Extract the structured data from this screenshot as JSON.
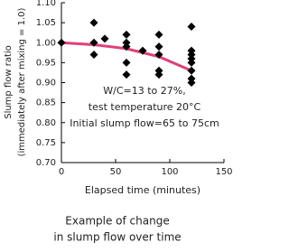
{
  "chart_data": {
    "type": "scatter",
    "x_label": "Elapsed time (minutes)",
    "y_label": [
      "Slump flow ratio",
      "(immediately after mixing = 1.0)"
    ],
    "annotation": [
      "W/C=13 to 27%,",
      "test temperature 20°C",
      "Initial slump flow=65 to 75cm"
    ],
    "caption": [
      "Example of change",
      "in slump flow over time"
    ],
    "x": [
      0,
      30,
      30,
      30,
      40,
      60,
      60,
      60,
      60,
      60,
      75,
      90,
      90,
      90,
      90,
      90,
      120,
      120,
      120,
      120,
      120,
      120,
      120,
      120
    ],
    "y": [
      1.0,
      1.05,
      1.0,
      0.97,
      1.01,
      1.02,
      1.0,
      0.99,
      0.95,
      0.92,
      0.98,
      1.02,
      0.99,
      0.97,
      0.93,
      0.92,
      1.04,
      0.98,
      0.97,
      0.96,
      0.95,
      0.93,
      0.91,
      0.9
    ],
    "color": "#000000",
    "curve": {
      "x": [
        0,
        30,
        60,
        90,
        120
      ],
      "y": [
        1.0,
        0.995,
        0.985,
        0.965,
        0.93
      ],
      "color": "#e0407a"
    },
    "xlim": [
      0,
      150
    ],
    "xticks": [
      0,
      50,
      100,
      150
    ],
    "ylim": [
      0.7,
      1.1
    ],
    "yticks": [
      {
        "value": 0.7,
        "label": "0.70"
      },
      0.75,
      {
        "value": 0.8,
        "label": "0.80"
      },
      0.85,
      {
        "value": 0.9,
        "label": "0.90"
      },
      0.95,
      {
        "value": 1.0,
        "label": "1.00"
      },
      1.05,
      {
        "value": 1.1,
        "label": "1.10"
      }
    ],
    "grid": false
  }
}
